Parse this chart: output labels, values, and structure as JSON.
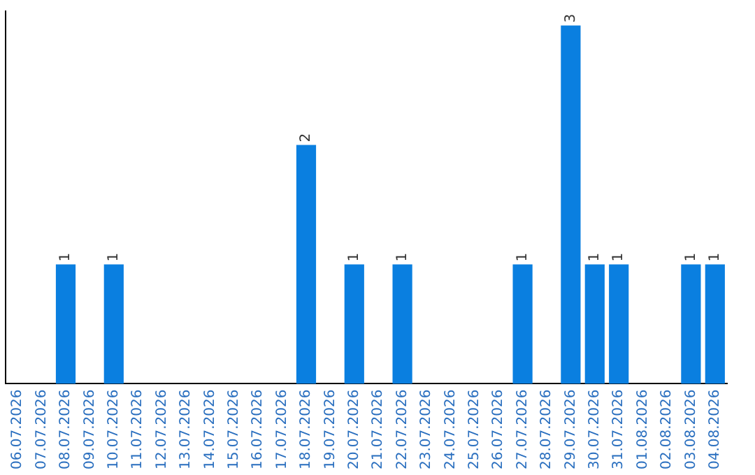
{
  "chart_data": {
    "type": "bar",
    "categories": [
      "06.07.2026",
      "07.07.2026",
      "08.07.2026",
      "09.07.2026",
      "10.07.2026",
      "11.07.2026",
      "12.07.2026",
      "13.07.2026",
      "14.07.2026",
      "15.07.2026",
      "16.07.2026",
      "17.07.2026",
      "18.07.2026",
      "19.07.2026",
      "20.07.2026",
      "21.07.2026",
      "22.07.2026",
      "23.07.2026",
      "24.07.2026",
      "25.07.2026",
      "26.07.2026",
      "27.07.2026",
      "28.07.2026",
      "29.07.2026",
      "30.07.2026",
      "31.07.2026",
      "01.08.2026",
      "02.08.2026",
      "03.08.2026",
      "04.08.2026"
    ],
    "values": [
      0,
      0,
      1,
      0,
      1,
      0,
      0,
      0,
      0,
      0,
      0,
      0,
      2,
      0,
      1,
      0,
      1,
      0,
      0,
      0,
      0,
      1,
      0,
      3,
      1,
      1,
      0,
      0,
      1,
      1
    ],
    "color": "#0a7fe0",
    "value_labels": [
      null,
      null,
      "1",
      null,
      "1",
      null,
      null,
      null,
      null,
      null,
      null,
      null,
      "2",
      null,
      "1",
      null,
      "1",
      null,
      null,
      null,
      null,
      "1",
      null,
      "3",
      "1",
      "1",
      null,
      null,
      "1",
      "1"
    ],
    "grid": false,
    "legend": false,
    "tick_labels": "x"
  }
}
